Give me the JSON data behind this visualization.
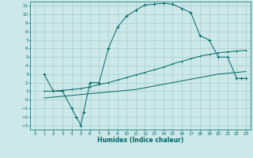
{
  "title": "",
  "xlabel": "Humidex (Indice chaleur)",
  "ylabel": "",
  "bg_color": "#cce8e8",
  "grid_color": "#aacccc",
  "line_color": "#006666",
  "xlim": [
    -0.5,
    23.5
  ],
  "ylim": [
    -3.5,
    11.5
  ],
  "xticks": [
    0,
    1,
    2,
    3,
    4,
    5,
    6,
    7,
    8,
    9,
    10,
    11,
    12,
    13,
    14,
    15,
    16,
    17,
    18,
    19,
    20,
    21,
    22,
    23
  ],
  "yticks": [
    -3,
    -2,
    -1,
    0,
    1,
    2,
    3,
    4,
    5,
    6,
    7,
    8,
    9,
    10,
    11
  ],
  "line1_x": [
    1,
    2,
    3,
    4,
    4.5,
    5,
    5.3,
    6,
    7,
    8,
    9,
    10,
    11,
    12,
    13,
    14,
    15,
    16,
    17,
    18,
    19,
    20,
    21,
    22,
    22.5,
    23
  ],
  "line1_y": [
    3,
    1,
    1,
    -1,
    -2,
    -3,
    -1.5,
    2,
    2,
    6,
    8.5,
    9.8,
    10.5,
    11.1,
    11.2,
    11.3,
    11.2,
    10.7,
    10.2,
    7.5,
    7.0,
    5.0,
    5.0,
    2.5,
    2.5,
    2.5
  ],
  "line2_x": [
    1,
    2,
    3,
    4,
    5,
    6,
    7,
    8,
    9,
    10,
    11,
    12,
    13,
    14,
    15,
    16,
    17,
    18,
    19,
    20,
    21,
    22,
    23
  ],
  "line2_y": [
    1.0,
    1.0,
    1.1,
    1.2,
    1.3,
    1.5,
    1.8,
    2.0,
    2.3,
    2.6,
    2.9,
    3.2,
    3.5,
    3.8,
    4.2,
    4.5,
    4.8,
    5.1,
    5.3,
    5.5,
    5.6,
    5.7,
    5.8
  ],
  "line3_x": [
    1,
    2,
    3,
    4,
    5,
    6,
    7,
    8,
    9,
    10,
    11,
    12,
    13,
    14,
    15,
    16,
    17,
    18,
    19,
    20,
    21,
    22,
    23
  ],
  "line3_y": [
    0.2,
    0.3,
    0.4,
    0.5,
    0.6,
    0.7,
    0.8,
    0.9,
    1.0,
    1.1,
    1.2,
    1.4,
    1.6,
    1.8,
    2.0,
    2.2,
    2.4,
    2.6,
    2.8,
    3.0,
    3.1,
    3.2,
    3.3
  ]
}
